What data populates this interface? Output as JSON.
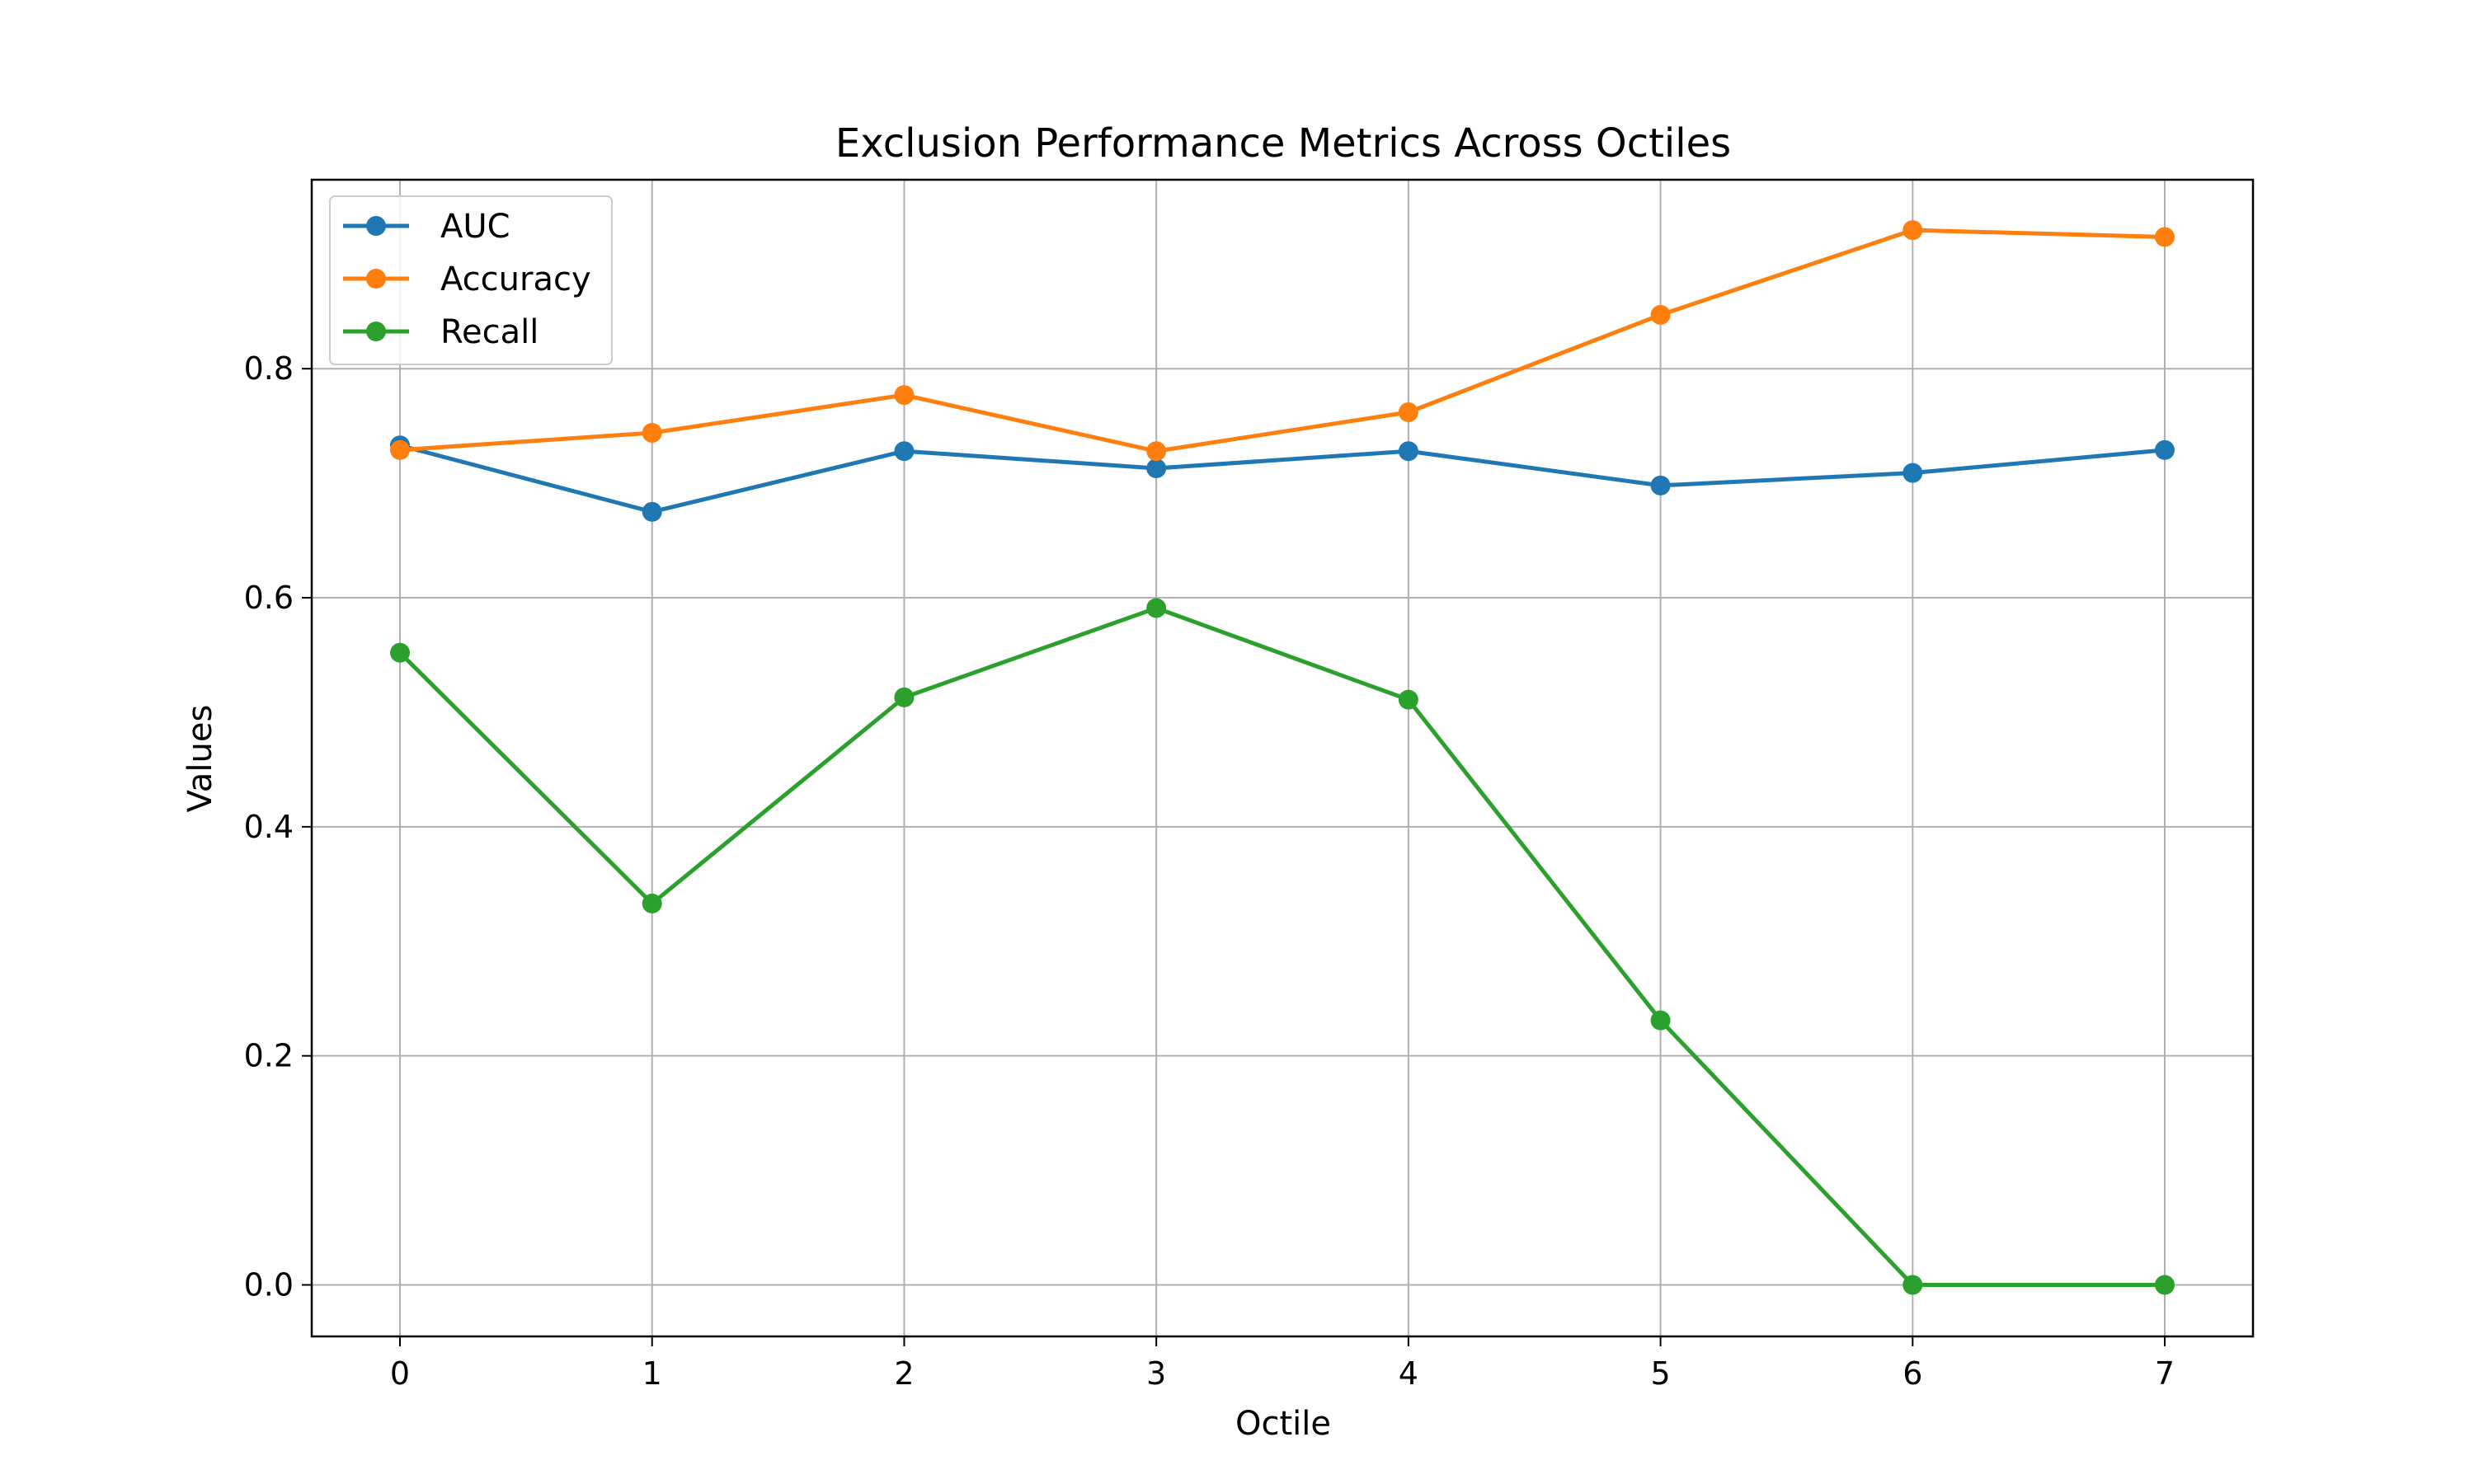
{
  "chart_data": {
    "type": "line",
    "title": "Exclusion Performance Metrics Across Octiles",
    "xlabel": "Octile",
    "ylabel": "Values",
    "x": [
      0,
      1,
      2,
      3,
      4,
      5,
      6,
      7
    ],
    "xlim": [
      -0.35,
      7.35
    ],
    "ylim": [
      -0.045,
      0.965
    ],
    "xticks": [
      "0",
      "1",
      "2",
      "3",
      "4",
      "5",
      "6",
      "7"
    ],
    "yticks": [
      "0.0",
      "0.2",
      "0.4",
      "0.6",
      "0.8"
    ],
    "ytick_values": [
      0.0,
      0.2,
      0.4,
      0.6,
      0.8
    ],
    "grid": true,
    "legend_position": "top-left",
    "series": [
      {
        "name": "AUC",
        "color": "#1f77b4",
        "values": [
          0.733,
          0.675,
          0.728,
          0.713,
          0.728,
          0.698,
          0.709,
          0.729
        ]
      },
      {
        "name": "Accuracy",
        "color": "#ff7f0e",
        "values": [
          0.729,
          0.744,
          0.777,
          0.728,
          0.762,
          0.847,
          0.921,
          0.915
        ]
      },
      {
        "name": "Recall",
        "color": "#2ca02c",
        "values": [
          0.552,
          0.333,
          0.513,
          0.591,
          0.511,
          0.231,
          0.0,
          0.0
        ]
      }
    ]
  }
}
